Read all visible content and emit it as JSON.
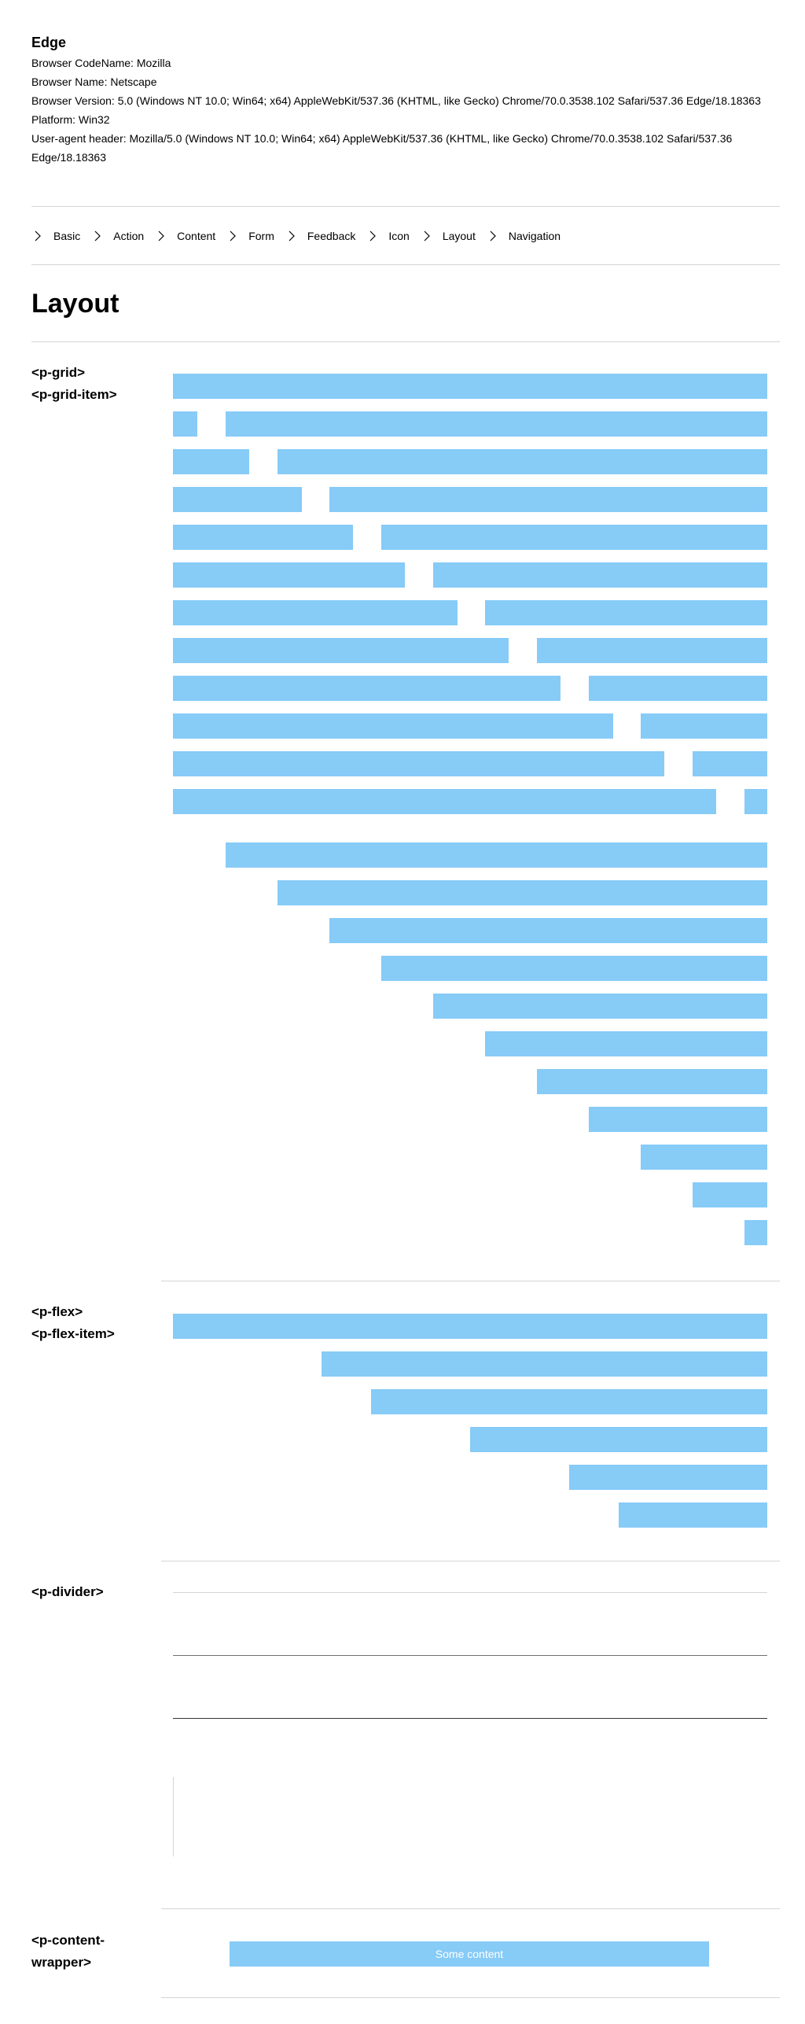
{
  "browser_info": {
    "title": "Edge",
    "lines": [
      "Browser CodeName: Mozilla",
      "Browser Name: Netscape",
      "Browser Version: 5.0 (Windows NT 10.0; Win64; x64) AppleWebKit/537.36 (KHTML, like Gecko) Chrome/70.0.3538.102 Safari/537.36 Edge/18.18363",
      "Platform: Win32",
      "User-agent header: Mozilla/5.0 (Windows NT 10.0; Win64; x64) AppleWebKit/537.36 (KHTML, like Gecko) Chrome/70.0.3538.102 Safari/537.36 Edge/18.18363"
    ]
  },
  "nav": {
    "items": [
      "Basic",
      "Action",
      "Content",
      "Form",
      "Feedback",
      "Icon",
      "Layout",
      "Navigation"
    ],
    "icon": "chevron-right-icon"
  },
  "page": {
    "title": "Layout"
  },
  "sections": {
    "grid": {
      "label_1": "<p-grid>",
      "label_2": "<p-grid-item>"
    },
    "flex": {
      "label_1": "<p-flex>",
      "label_2": "<p-flex-item>"
    },
    "divider": {
      "label": "<p-divider>"
    },
    "content_wrapper": {
      "label": "<p-content-wrapper>",
      "content": "Some content"
    }
  },
  "colors": {
    "item": "#87cbf7",
    "divider_light": "#d5d5d5",
    "divider_dark": "#323639"
  }
}
